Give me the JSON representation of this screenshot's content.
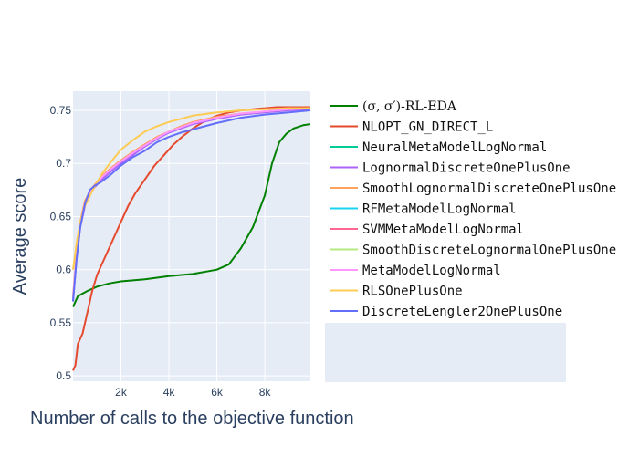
{
  "chart_data": {
    "type": "line",
    "xlabel": "Number of calls to the objective function",
    "ylabel": "Average score",
    "xlim": [
      0,
      9900
    ],
    "ylim": [
      0.495,
      0.768
    ],
    "xticks": [
      2000,
      4000,
      6000,
      8000
    ],
    "xtick_labels": [
      "2k",
      "4k",
      "6k",
      "8k"
    ],
    "yticks": [
      0.5,
      0.55,
      0.6,
      0.65,
      0.7,
      0.75
    ],
    "ytick_labels": [
      "0.5",
      "0.55",
      "0.6",
      "0.65",
      "0.7",
      "0.75"
    ],
    "grid": true,
    "legend_position": "right",
    "series": [
      {
        "name": "(σ, σ′)-RL-EDA",
        "color": "#008000",
        "points": [
          [
            0,
            0.565
          ],
          [
            200,
            0.575
          ],
          [
            600,
            0.58
          ],
          [
            1000,
            0.584
          ],
          [
            1500,
            0.587
          ],
          [
            2000,
            0.589
          ],
          [
            3000,
            0.591
          ],
          [
            4000,
            0.594
          ],
          [
            5000,
            0.596
          ],
          [
            6000,
            0.6
          ],
          [
            6500,
            0.605
          ],
          [
            7000,
            0.62
          ],
          [
            7500,
            0.64
          ],
          [
            8000,
            0.67
          ],
          [
            8300,
            0.7
          ],
          [
            8600,
            0.72
          ],
          [
            8900,
            0.728
          ],
          [
            9200,
            0.733
          ],
          [
            9600,
            0.736
          ],
          [
            9900,
            0.737
          ]
        ]
      },
      {
        "name": "NLOPT_GN_DIRECT_L",
        "color": "#e64a2e",
        "points": [
          [
            0,
            0.505
          ],
          [
            100,
            0.51
          ],
          [
            200,
            0.53
          ],
          [
            400,
            0.54
          ],
          [
            600,
            0.56
          ],
          [
            800,
            0.58
          ],
          [
            1000,
            0.595
          ],
          [
            1200,
            0.605
          ],
          [
            1500,
            0.62
          ],
          [
            1800,
            0.635
          ],
          [
            2000,
            0.645
          ],
          [
            2300,
            0.66
          ],
          [
            2600,
            0.672
          ],
          [
            3000,
            0.685
          ],
          [
            3400,
            0.698
          ],
          [
            3800,
            0.708
          ],
          [
            4200,
            0.718
          ],
          [
            4600,
            0.726
          ],
          [
            5000,
            0.733
          ],
          [
            5500,
            0.74
          ],
          [
            6000,
            0.745
          ],
          [
            6500,
            0.748
          ],
          [
            7000,
            0.75
          ],
          [
            7500,
            0.751
          ],
          [
            8000,
            0.752
          ],
          [
            8500,
            0.753
          ],
          [
            9000,
            0.753
          ],
          [
            9900,
            0.753
          ]
        ]
      },
      {
        "name": "NeuralMetaModelLogNormal",
        "color": "#00cc96",
        "points": []
      },
      {
        "name": "LognormalDiscreteOnePlusOne",
        "color": "#ab63fa",
        "points": [
          [
            0,
            0.57
          ],
          [
            150,
            0.61
          ],
          [
            300,
            0.64
          ],
          [
            500,
            0.66
          ],
          [
            800,
            0.675
          ],
          [
            1200,
            0.685
          ],
          [
            1600,
            0.693
          ],
          [
            2000,
            0.7
          ],
          [
            2500,
            0.708
          ],
          [
            3000,
            0.716
          ],
          [
            3500,
            0.723
          ],
          [
            4000,
            0.729
          ],
          [
            4500,
            0.733
          ],
          [
            5000,
            0.737
          ],
          [
            6000,
            0.742
          ],
          [
            7000,
            0.746
          ],
          [
            8000,
            0.748
          ],
          [
            9000,
            0.75
          ],
          [
            9900,
            0.751
          ]
        ]
      },
      {
        "name": "SmoothLognormalDiscreteOnePlusOne",
        "color": "#ffa15a",
        "points": [
          [
            0,
            0.575
          ],
          [
            150,
            0.615
          ],
          [
            300,
            0.645
          ],
          [
            500,
            0.665
          ],
          [
            800,
            0.677
          ],
          [
            1200,
            0.688
          ],
          [
            1600,
            0.696
          ],
          [
            2000,
            0.703
          ],
          [
            2500,
            0.711
          ],
          [
            3000,
            0.718
          ],
          [
            3500,
            0.725
          ],
          [
            4000,
            0.73
          ],
          [
            4500,
            0.735
          ],
          [
            5000,
            0.739
          ],
          [
            6000,
            0.744
          ],
          [
            7000,
            0.747
          ],
          [
            8000,
            0.749
          ],
          [
            9000,
            0.751
          ],
          [
            9900,
            0.752
          ]
        ]
      },
      {
        "name": "RFMetaModelLogNormal",
        "color": "#19d3f3",
        "points": []
      },
      {
        "name": "SVMMetaModelLogNormal",
        "color": "#ff6692",
        "points": []
      },
      {
        "name": "SmoothDiscreteLognormalOnePlusOne",
        "color": "#b6e880",
        "points": []
      },
      {
        "name": "MetaModelLogNormal",
        "color": "#ff97ff",
        "points": [
          [
            0,
            0.573
          ],
          [
            150,
            0.612
          ],
          [
            300,
            0.642
          ],
          [
            500,
            0.662
          ],
          [
            800,
            0.676
          ],
          [
            1200,
            0.687
          ],
          [
            1600,
            0.695
          ],
          [
            2000,
            0.702
          ],
          [
            2500,
            0.71
          ],
          [
            3000,
            0.717
          ],
          [
            3500,
            0.724
          ],
          [
            4000,
            0.73
          ],
          [
            4500,
            0.734
          ],
          [
            5000,
            0.738
          ],
          [
            6000,
            0.743
          ],
          [
            7000,
            0.747
          ],
          [
            8000,
            0.749
          ],
          [
            9000,
            0.751
          ],
          [
            9900,
            0.752
          ]
        ]
      },
      {
        "name": "RLSOnePlusOne",
        "color": "#fecb52",
        "points": [
          [
            0,
            0.6
          ],
          [
            150,
            0.625
          ],
          [
            300,
            0.645
          ],
          [
            500,
            0.66
          ],
          [
            800,
            0.674
          ],
          [
            1200,
            0.69
          ],
          [
            1600,
            0.702
          ],
          [
            2000,
            0.713
          ],
          [
            2500,
            0.722
          ],
          [
            3000,
            0.73
          ],
          [
            3500,
            0.735
          ],
          [
            4000,
            0.739
          ],
          [
            4500,
            0.742
          ],
          [
            5000,
            0.745
          ],
          [
            6000,
            0.748
          ],
          [
            7000,
            0.75
          ],
          [
            8000,
            0.751
          ],
          [
            9000,
            0.752
          ],
          [
            9900,
            0.752
          ]
        ]
      },
      {
        "name": "DiscreteLengler2OnePlusOne",
        "color": "#636efa",
        "points": [
          [
            0,
            0.57
          ],
          [
            150,
            0.61
          ],
          [
            300,
            0.64
          ],
          [
            500,
            0.662
          ],
          [
            700,
            0.675
          ],
          [
            900,
            0.679
          ],
          [
            1200,
            0.683
          ],
          [
            1600,
            0.69
          ],
          [
            2000,
            0.698
          ],
          [
            2500,
            0.706
          ],
          [
            3000,
            0.712
          ],
          [
            3500,
            0.72
          ],
          [
            4000,
            0.725
          ],
          [
            4500,
            0.729
          ],
          [
            5000,
            0.732
          ],
          [
            6000,
            0.738
          ],
          [
            7000,
            0.743
          ],
          [
            8000,
            0.746
          ],
          [
            9000,
            0.748
          ],
          [
            9900,
            0.75
          ]
        ]
      }
    ]
  }
}
